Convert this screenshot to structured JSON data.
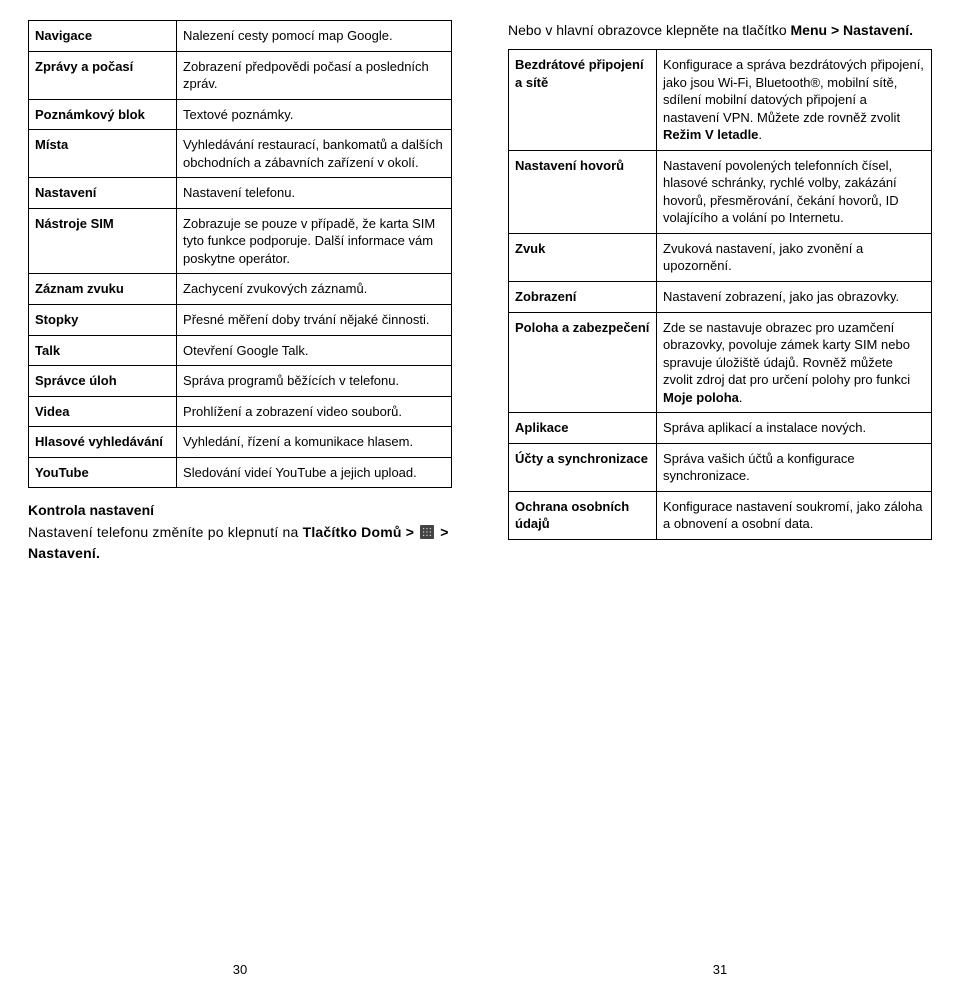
{
  "leftTable": [
    {
      "k": "Navigace",
      "v": "Nalezení cesty pomocí map Google."
    },
    {
      "k": "Zprávy a počasí",
      "v": "Zobrazení předpovědi počasí a posledních zpráv."
    },
    {
      "k": "Poznámkový blok",
      "v": "Textové poznámky."
    },
    {
      "k": "Místa",
      "v": "Vyhledávání restaurací, bankomatů a dalších obchodních a zábavních zařízení v okolí."
    },
    {
      "k": "Nastavení",
      "v": "Nastavení telefonu."
    },
    {
      "k": "Nástroje SIM",
      "v": "Zobrazuje se pouze v případě, že karta SIM tyto funkce podporuje. Další informace vám poskytne operátor."
    },
    {
      "k": "Záznam zvuku",
      "v": "Zachycení zvukových záznamů."
    },
    {
      "k": "Stopky",
      "v": "Přesné měření doby trvání nějaké činnosti."
    },
    {
      "k": "Talk",
      "v": "Otevření Google Talk."
    },
    {
      "k": "Správce úloh",
      "v": "Správa programů běžících v telefonu."
    },
    {
      "k": "Videa",
      "v": "Prohlížení a zobrazení video souborů."
    },
    {
      "k": "Hlasové vyhledávání",
      "v": "Vyhledání, řízení a komunikace hlasem."
    },
    {
      "k": "YouTube",
      "v": "Sledování videí YouTube a jejich upload."
    }
  ],
  "leftSectionTitle": "Kontrola nastavení",
  "leftPara1a": "Nastavení telefonu změníte po klepnutí na ",
  "leftPara1b": "Tlačítko Domů > ",
  "leftPara1c": " > Nastavení.",
  "leftPageNum": "30",
  "rightTopA": "Nebo v hlavní obrazovce klepněte na tlačítko ",
  "rightTopB": "Menu > Nastavení.",
  "rightTable": [
    {
      "k": "Bezdrátové připojení a sítě",
      "v": "Konfigurace a správa bezdrátových připojení, jako jsou Wi-Fi, Bluetooth®, mobilní sítě, sdílení mobilní datových připojení a nastavení VPN. Můžete zde rovněž zvolit ",
      "vBold": "Režim V letadle",
      "vAfter": "."
    },
    {
      "k": "Nastavení hovorů",
      "v": "Nastavení povolených telefonních čísel, hlasové schránky, rychlé volby, zakázání hovorů, přesměrování, čekání hovorů, ID volajícího a volání po Internetu."
    },
    {
      "k": "Zvuk",
      "v": "Zvuková nastavení, jako zvonění a upozornění."
    },
    {
      "k": "Zobrazení",
      "v": "Nastavení zobrazení, jako jas obrazovky."
    },
    {
      "k": "Poloha a zabezpečení",
      "v": "Zde se nastavuje obrazec pro uzamčení obrazovky, povoluje zámek karty SIM nebo spravuje úložiště údajů. Rovněž můžete zvolit zdroj dat pro určení polohy pro funkci ",
      "vBold": "Moje poloha",
      "vAfter": "."
    },
    {
      "k": "Aplikace",
      "v": "Správa aplikací a instalace nových."
    },
    {
      "k": "Účty a synchronizace",
      "v": "Správa vašich účtů a konfigurace synchronizace."
    },
    {
      "k": "Ochrana osobních údajů",
      "v": "Konfigurace nastavení soukromí, jako záloha a obnovení a osobní data."
    }
  ],
  "rightPageNum": "31"
}
